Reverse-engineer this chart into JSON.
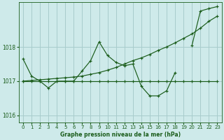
{
  "title": "Graphe pression niveau de la mer (hPa)",
  "bg_color": "#ceeaea",
  "grid_color": "#a8cccc",
  "line_color": "#1a5c1a",
  "marker": "+",
  "ylim": [
    1015.8,
    1019.3
  ],
  "yticks": [
    1016,
    1017,
    1018
  ],
  "xlim": [
    -0.5,
    23.5
  ],
  "xticks": [
    0,
    1,
    2,
    3,
    4,
    5,
    6,
    7,
    8,
    9,
    10,
    11,
    12,
    13,
    14,
    15,
    16,
    17,
    18,
    19,
    20,
    21,
    22,
    23
  ],
  "series": [
    {
      "x": [
        0,
        1,
        2,
        3,
        4,
        5,
        6,
        7,
        8,
        9,
        10,
        11,
        12,
        13,
        14,
        15,
        16,
        17,
        18
      ],
      "y": [
        1017.65,
        1017.15,
        1017.0,
        1016.8,
        1017.0,
        1017.0,
        1017.0,
        1017.3,
        1017.6,
        1018.15,
        1017.75,
        1017.55,
        1017.45,
        1017.5,
        1016.85,
        1016.57,
        1016.57,
        1016.72,
        1017.25
      ]
    },
    {
      "x": [
        0,
        1,
        2,
        3,
        4,
        5,
        6,
        7,
        8,
        9,
        10,
        11,
        12,
        13,
        14,
        15,
        16,
        17,
        18,
        19,
        20,
        21,
        22,
        23
      ],
      "y": [
        1017.0,
        1017.02,
        1017.04,
        1017.06,
        1017.08,
        1017.1,
        1017.12,
        1017.15,
        1017.2,
        1017.25,
        1017.32,
        1017.4,
        1017.5,
        1017.6,
        1017.68,
        1017.78,
        1017.9,
        1018.0,
        1018.12,
        1018.25,
        1018.38,
        1018.55,
        1018.75,
        1018.9
      ]
    },
    {
      "x": [
        0,
        1,
        2,
        3,
        4,
        5,
        6,
        7,
        8,
        9,
        10,
        11,
        12,
        13,
        14,
        15,
        16,
        17,
        18,
        19,
        20,
        21,
        22,
        23
      ],
      "y": [
        1017.0,
        1017.0,
        1017.0,
        1017.0,
        1017.0,
        1017.0,
        1017.0,
        1017.0,
        1017.0,
        1017.0,
        1017.0,
        1017.0,
        1017.0,
        1017.0,
        1017.0,
        1017.0,
        1017.0,
        1017.0,
        1017.0,
        1017.0,
        1017.0,
        1017.0,
        1017.0,
        1017.0
      ]
    },
    {
      "x": [
        20,
        21,
        22,
        23
      ],
      "y": [
        1018.05,
        1019.05,
        1019.12,
        1019.18
      ]
    }
  ]
}
